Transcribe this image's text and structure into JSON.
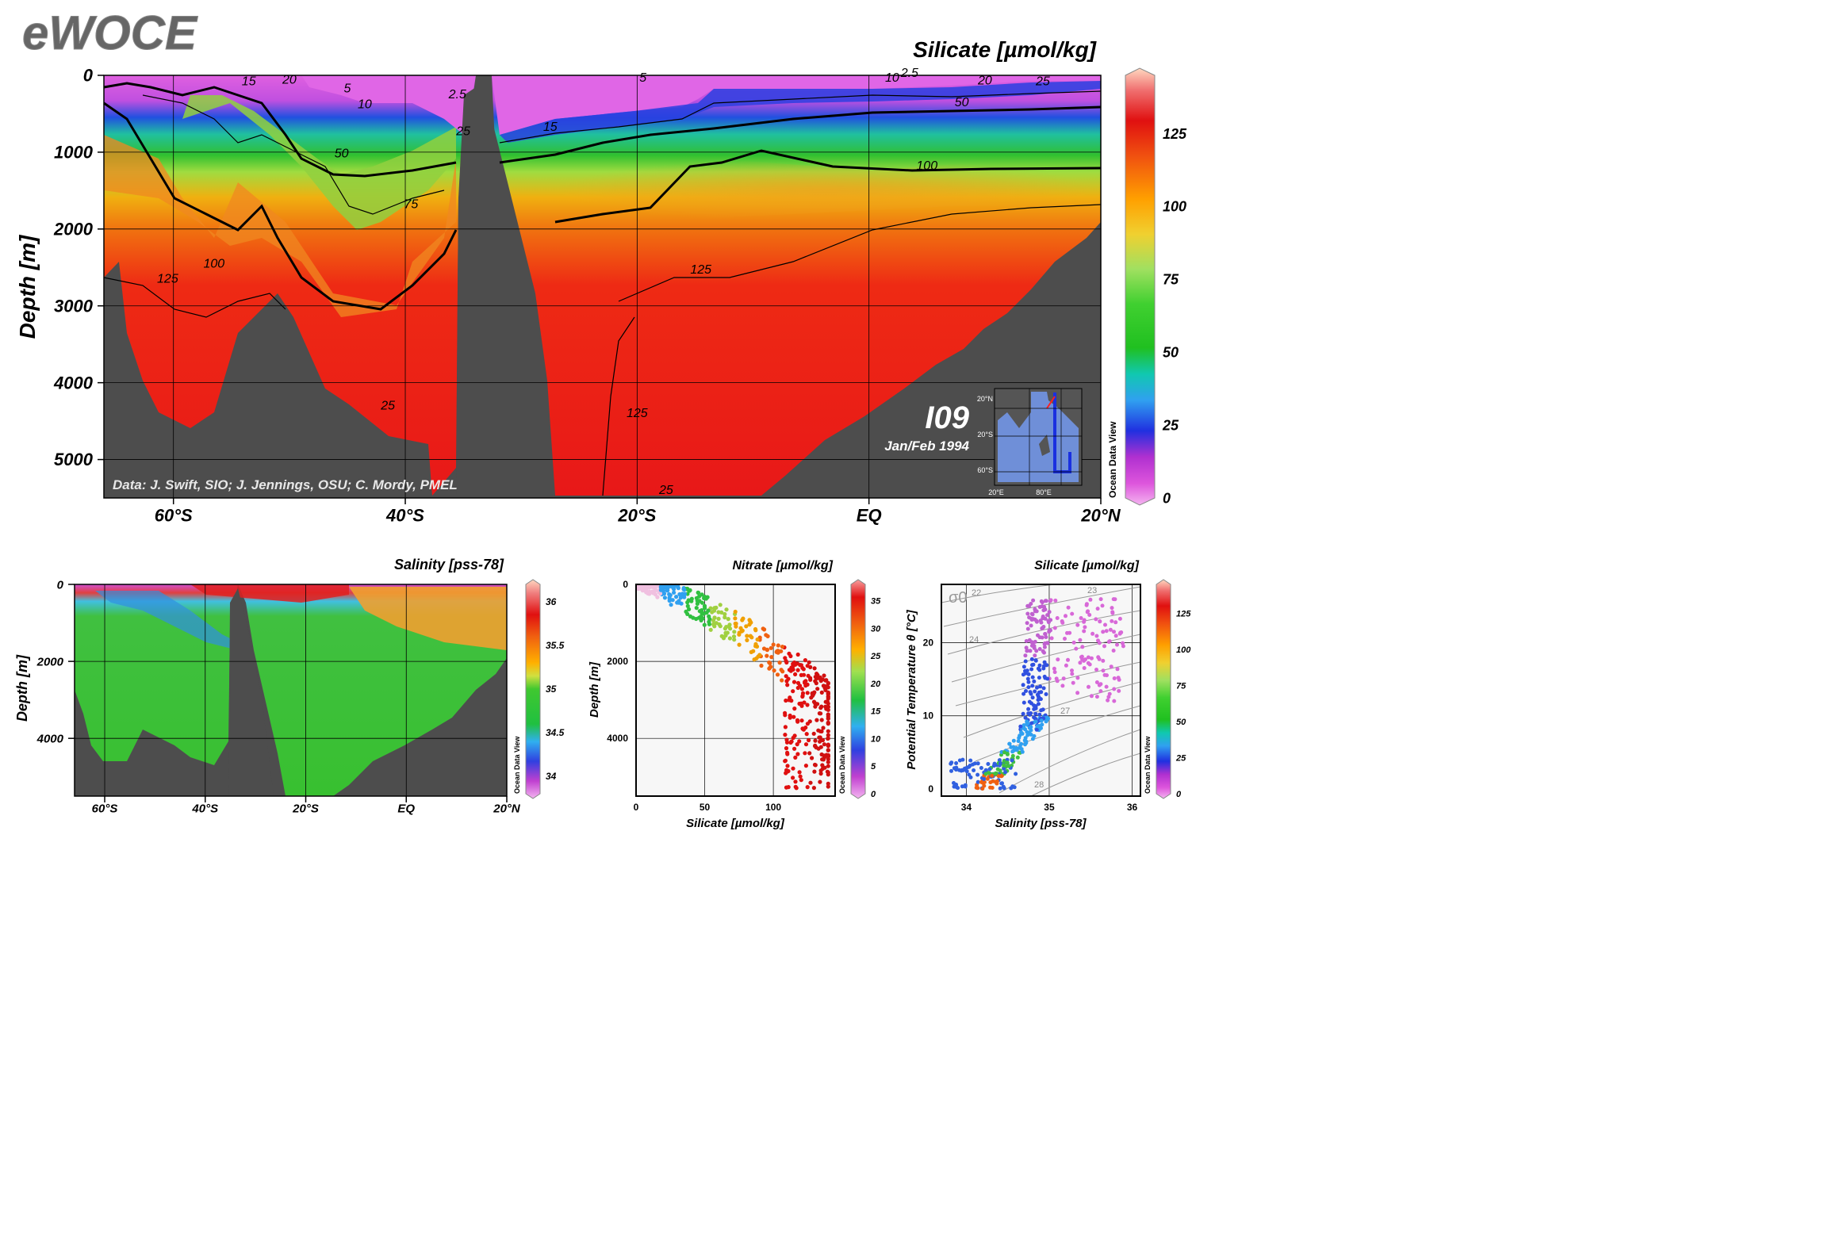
{
  "logo": "eWOCE",
  "chart_data": [
    {
      "type": "heatmap",
      "id": "main-section",
      "title": "Silicate [µmol/kg]",
      "ylabel": "Depth [m]",
      "ylim": [
        5500,
        0
      ],
      "yticks": [
        0,
        1000,
        2000,
        3000,
        4000,
        5000
      ],
      "xlim": [
        -66,
        20
      ],
      "xticks": [
        {
          "v": -60,
          "label": "60°S"
        },
        {
          "v": -40,
          "label": "40°S"
        },
        {
          "v": -20,
          "label": "20°S"
        },
        {
          "v": 0,
          "label": "EQ"
        },
        {
          "v": 20,
          "label": "20°N"
        }
      ],
      "colorbar": {
        "min": 0,
        "max": 145,
        "ticks": [
          0,
          25,
          50,
          75,
          100,
          125
        ],
        "label": "Ocean Data View"
      },
      "section_name": "I09",
      "section_date": "Jan/Feb 1994",
      "credit": "Data: J. Swift, SIO; J. Jennings, OSU; C. Mordy, PMEL",
      "inset_map": {
        "yticks": [
          "20°N",
          "20°S",
          "60°S"
        ],
        "xticks": [
          "20°E",
          "80°E"
        ]
      },
      "contour_labels": [
        {
          "text": "15",
          "lat": -53.5,
          "depth": 130
        },
        {
          "text": "20",
          "lat": -50,
          "depth": 110
        },
        {
          "text": "5",
          "lat": -45,
          "depth": 220
        },
        {
          "text": "10",
          "lat": -43.5,
          "depth": 430
        },
        {
          "text": "2.5",
          "lat": -35.5,
          "depth": 300
        },
        {
          "text": "25",
          "lat": -35,
          "depth": 780
        },
        {
          "text": "50",
          "lat": -45.5,
          "depth": 1070
        },
        {
          "text": "75",
          "lat": -39.5,
          "depth": 1730
        },
        {
          "text": "15",
          "lat": -27.5,
          "depth": 720
        },
        {
          "text": "5",
          "lat": -19.5,
          "depth": 85
        },
        {
          "text": "10",
          "lat": 2,
          "depth": 80
        },
        {
          "text": "2.5",
          "lat": 3.5,
          "depth": 20
        },
        {
          "text": "20",
          "lat": 10,
          "depth": 120
        },
        {
          "text": "25",
          "lat": 15,
          "depth": 130
        },
        {
          "text": "50",
          "lat": 8,
          "depth": 400
        },
        {
          "text": "100",
          "lat": 5,
          "depth": 1230
        },
        {
          "text": "125",
          "lat": -14.5,
          "depth": 2580
        },
        {
          "text": "100",
          "lat": -56.5,
          "depth": 2500
        },
        {
          "text": "125",
          "lat": -60.5,
          "depth": 2700
        },
        {
          "text": "25",
          "lat": -41.5,
          "depth": 4350
        },
        {
          "text": "125",
          "lat": -20,
          "depth": 4450
        },
        {
          "text": "25",
          "lat": -17.5,
          "depth": 5450
        }
      ]
    },
    {
      "type": "heatmap",
      "id": "salinity-section",
      "title": "Salinity [pss-78]",
      "ylabel": "Depth [m]",
      "ylim": [
        5500,
        0
      ],
      "yticks": [
        0,
        2000,
        4000
      ],
      "xlim": [
        -66,
        20
      ],
      "xticks": [
        {
          "v": -60,
          "label": "60°S"
        },
        {
          "v": -40,
          "label": "40°S"
        },
        {
          "v": -20,
          "label": "20°S"
        },
        {
          "v": 0,
          "label": "EQ"
        },
        {
          "v": 20,
          "label": "20°N"
        }
      ],
      "colorbar": {
        "min": 33.8,
        "max": 36.2,
        "ticks": [
          34,
          34.5,
          35,
          35.5,
          36
        ],
        "label": "Ocean Data View"
      }
    },
    {
      "type": "scatter",
      "id": "nitrate-scatter",
      "title": "Nitrate [µmol/kg]",
      "xlabel": "Silicate [µmol/kg]",
      "ylabel": "Depth [m]",
      "xlim": [
        0,
        145
      ],
      "ylim": [
        5500,
        0
      ],
      "xticks": [
        0,
        50,
        100
      ],
      "yticks": [
        0,
        2000,
        4000
      ],
      "colorbar": {
        "min": 0,
        "max": 38,
        "ticks": [
          0,
          5,
          10,
          15,
          20,
          25,
          30,
          35
        ],
        "label": "Ocean Data View"
      }
    },
    {
      "type": "scatter",
      "id": "ts-scatter",
      "title": "Silicate [µmol/kg]",
      "xlabel": "Salinity [pss-78]",
      "ylabel": "Potential Temperature θ [°C]",
      "xlim": [
        33.7,
        36.1
      ],
      "ylim": [
        -1,
        28
      ],
      "xticks": [
        34,
        35,
        36
      ],
      "yticks": [
        0,
        10,
        20
      ],
      "sigma_label": "σ0",
      "density_labels": [
        "22",
        "23",
        "24",
        "27",
        "28"
      ],
      "colorbar": {
        "min": 0,
        "max": 145,
        "ticks": [
          0,
          25,
          50,
          75,
          100,
          125
        ],
        "label": "Ocean Data View"
      }
    }
  ]
}
